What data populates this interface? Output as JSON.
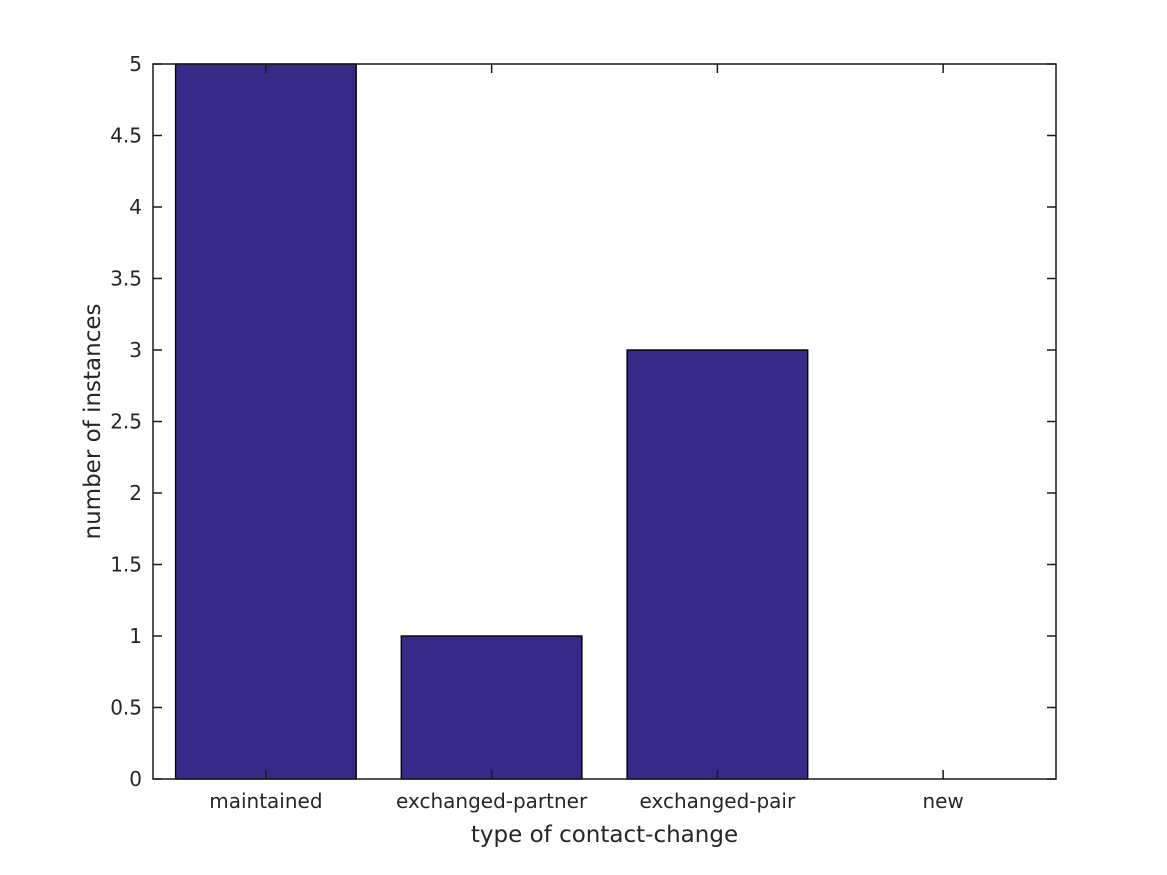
{
  "chart_data": {
    "type": "bar",
    "categories": [
      "maintained",
      "exchanged-partner",
      "exchanged-pair",
      "new"
    ],
    "values": [
      5,
      1,
      3,
      0
    ],
    "title": "",
    "xlabel": "type of contact-change",
    "ylabel": "number of instances",
    "ylim": [
      0,
      5
    ],
    "ytick_step": 0.5,
    "ytick_labels": [
      "0",
      "0.5",
      "1",
      "1.5",
      "2",
      "2.5",
      "3",
      "3.5",
      "4",
      "4.5",
      "5"
    ],
    "bar_width_fraction": 0.8,
    "grid": false,
    "box": true,
    "tick_direction": "in",
    "colors": {
      "bar_fill": "#352a87",
      "bar_edge": "#000000",
      "axis": "#1a1a1a",
      "text": "#262626",
      "background": "#ffffff"
    }
  }
}
